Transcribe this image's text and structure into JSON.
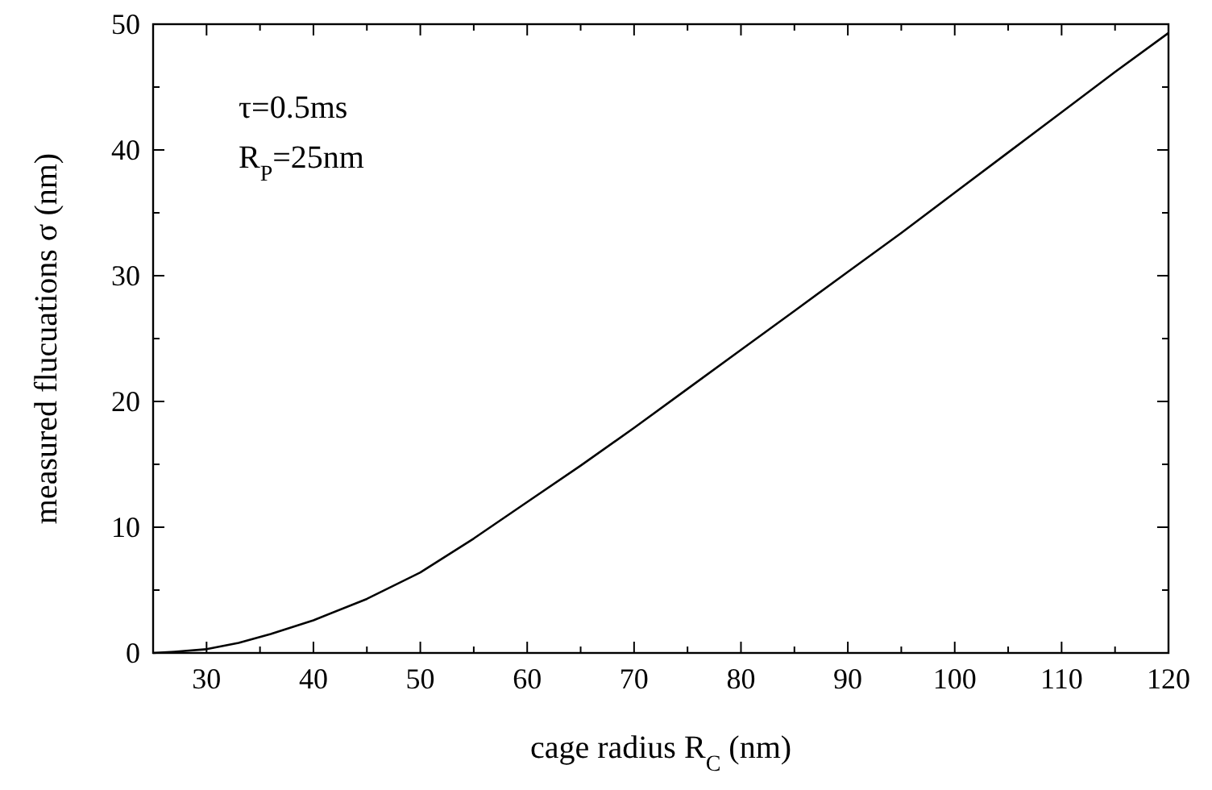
{
  "chart_data": {
    "type": "line",
    "xlabel": "cage radius R$_{C}$ (nm)",
    "ylabel": "measured flucuations σ (nm)",
    "annotations": [
      "τ=0.5ms",
      "R$_{P}$=25nm"
    ],
    "xlim": [
      25,
      120
    ],
    "ylim": [
      0,
      50
    ],
    "xticks": [
      30,
      {
        "value": 35,
        "label": null
      },
      40,
      {
        "value": 45,
        "label": null
      },
      50,
      {
        "value": 55,
        "label": null
      },
      60,
      {
        "value": 65,
        "label": null
      },
      70,
      {
        "value": 75,
        "label": null
      },
      80,
      {
        "value": 85,
        "label": null
      },
      90,
      {
        "value": 95,
        "label": null
      },
      100,
      {
        "value": 105,
        "label": null
      },
      110,
      {
        "value": 115,
        "label": null
      },
      120
    ],
    "yticks": [
      0,
      {
        "value": 5,
        "label": null
      },
      10,
      {
        "value": 15,
        "label": null
      },
      20,
      {
        "value": 25,
        "label": null
      },
      30,
      {
        "value": 35,
        "label": null
      },
      40,
      {
        "value": 45,
        "label": null
      },
      50
    ],
    "x": [
      25,
      27,
      30,
      33,
      36,
      40,
      45,
      50,
      55,
      60,
      65,
      70,
      75,
      80,
      85,
      90,
      95,
      100,
      105,
      110,
      115,
      120
    ],
    "series": [
      {
        "color": "#000000",
        "values": [
          0,
          0.1,
          0.3,
          0.8,
          1.5,
          2.6,
          4.3,
          6.4,
          9.1,
          12,
          14.9,
          17.9,
          21,
          24.1,
          27.2,
          30.3,
          33.4,
          36.6,
          39.8,
          43,
          46.2,
          49.3
        ]
      }
    ],
    "line_style": "solid"
  }
}
